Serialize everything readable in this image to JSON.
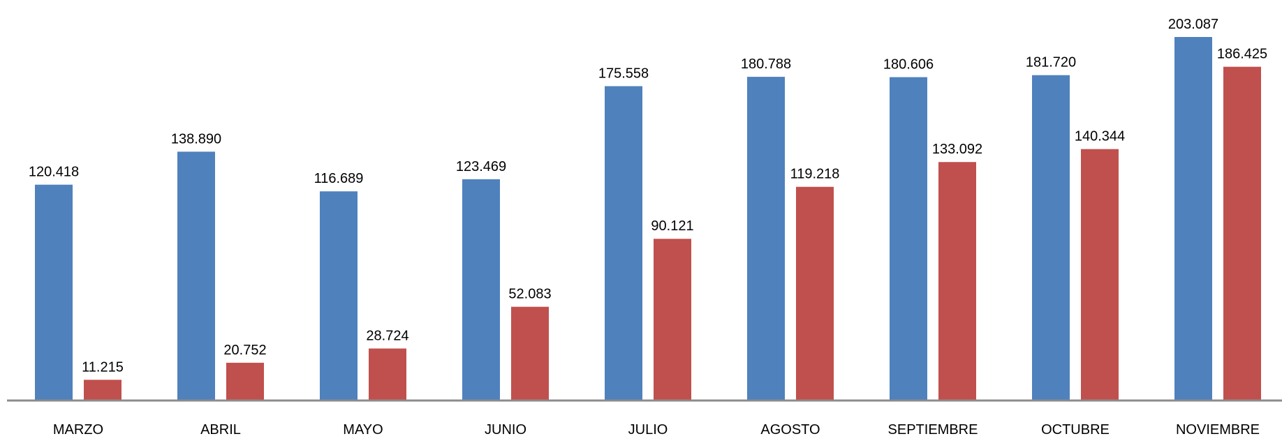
{
  "chart_data": {
    "type": "bar",
    "categories": [
      "MARZO",
      "ABRIL",
      "MAYO",
      "JUNIO",
      "JULIO",
      "AGOSTO",
      "SEPTIEMBRE",
      "OCTUBRE",
      "NOVIEMBRE"
    ],
    "series": [
      {
        "color": "#4f81bd",
        "values": [
          120418,
          138890,
          116689,
          123469,
          175558,
          180788,
          180606,
          181720,
          203087
        ],
        "value_labels": [
          "120.418",
          "138.890",
          "116.689",
          "123.469",
          "175.558",
          "180.788",
          "180.606",
          "181.720",
          "203.087"
        ]
      },
      {
        "color": "#c0504d",
        "values": [
          11215,
          20752,
          28724,
          52083,
          90121,
          119218,
          133092,
          140344,
          186425
        ],
        "value_labels": [
          "11.215",
          "20.752",
          "28.724",
          "52.083",
          "90.121",
          "119.218",
          "133.092",
          "140.344",
          "186.425"
        ]
      }
    ]
  }
}
